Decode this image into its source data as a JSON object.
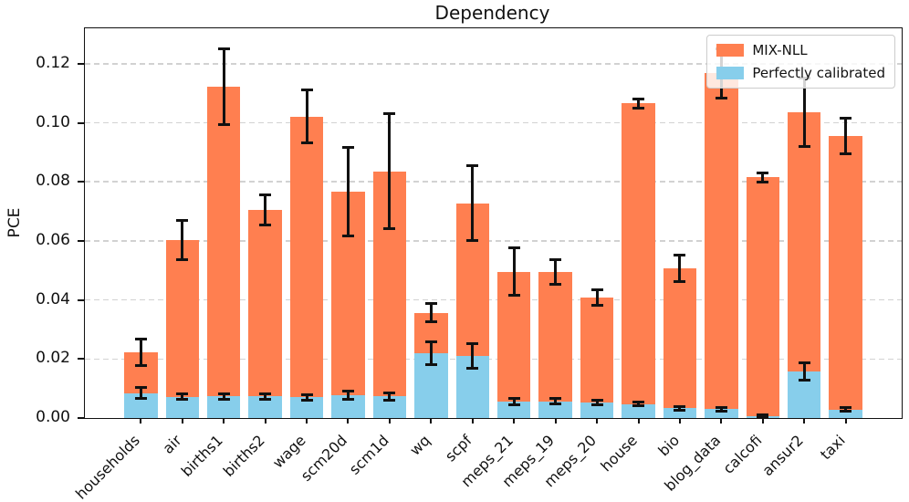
{
  "chart_data": {
    "type": "bar",
    "title": "Dependency",
    "ylabel": "PCE",
    "xlabel": "",
    "bar_style": "overlaid",
    "grid": "horizontal-dashed",
    "legend_position": "upper-right",
    "categories": [
      "households",
      "air",
      "births1",
      "births2",
      "wage",
      "scm20d",
      "scm1d",
      "wq",
      "scpf",
      "meps_21",
      "meps_19",
      "meps_20",
      "house",
      "bio",
      "blog_data",
      "calcofi",
      "ansur2",
      "taxi"
    ],
    "series": [
      {
        "name": "MIX-NLL",
        "color": "#FF7F50",
        "values": [
          0.0222,
          0.0602,
          0.1123,
          0.0706,
          0.1021,
          0.0768,
          0.0836,
          0.0357,
          0.0728,
          0.0495,
          0.0494,
          0.0407,
          0.1065,
          0.0506,
          0.1168,
          0.0815,
          0.1036,
          0.0955
        ],
        "errors": [
          0.0045,
          0.0066,
          0.0128,
          0.0051,
          0.009,
          0.015,
          0.0195,
          0.0032,
          0.0128,
          0.008,
          0.0042,
          0.0026,
          0.0015,
          0.0045,
          0.0083,
          0.0015,
          0.0115,
          0.0061
        ]
      },
      {
        "name": "Perfectly calibrated",
        "color": "#87CEEB",
        "values": [
          0.0085,
          0.0072,
          0.0073,
          0.0073,
          0.007,
          0.0077,
          0.0073,
          0.0219,
          0.0209,
          0.0057,
          0.0057,
          0.0052,
          0.0047,
          0.0033,
          0.003,
          0.0007,
          0.0157,
          0.0029
        ],
        "errors": [
          0.002,
          0.001,
          0.001,
          0.001,
          0.001,
          0.0013,
          0.0012,
          0.0038,
          0.0042,
          0.0011,
          0.0008,
          0.0008,
          0.0006,
          0.0006,
          0.0006,
          0.0004,
          0.003,
          0.0007
        ]
      }
    ],
    "ylim": [
      0,
      0.132
    ],
    "yticks": [
      "0.00",
      "0.02",
      "0.04",
      "0.06",
      "0.08",
      "0.10",
      "0.12"
    ],
    "x_range": [
      -1.35,
      18.35
    ],
    "bar_width": 0.8,
    "error_color": "#111111",
    "grid_color": "#d2d2d2",
    "frame_color": "#111111"
  }
}
